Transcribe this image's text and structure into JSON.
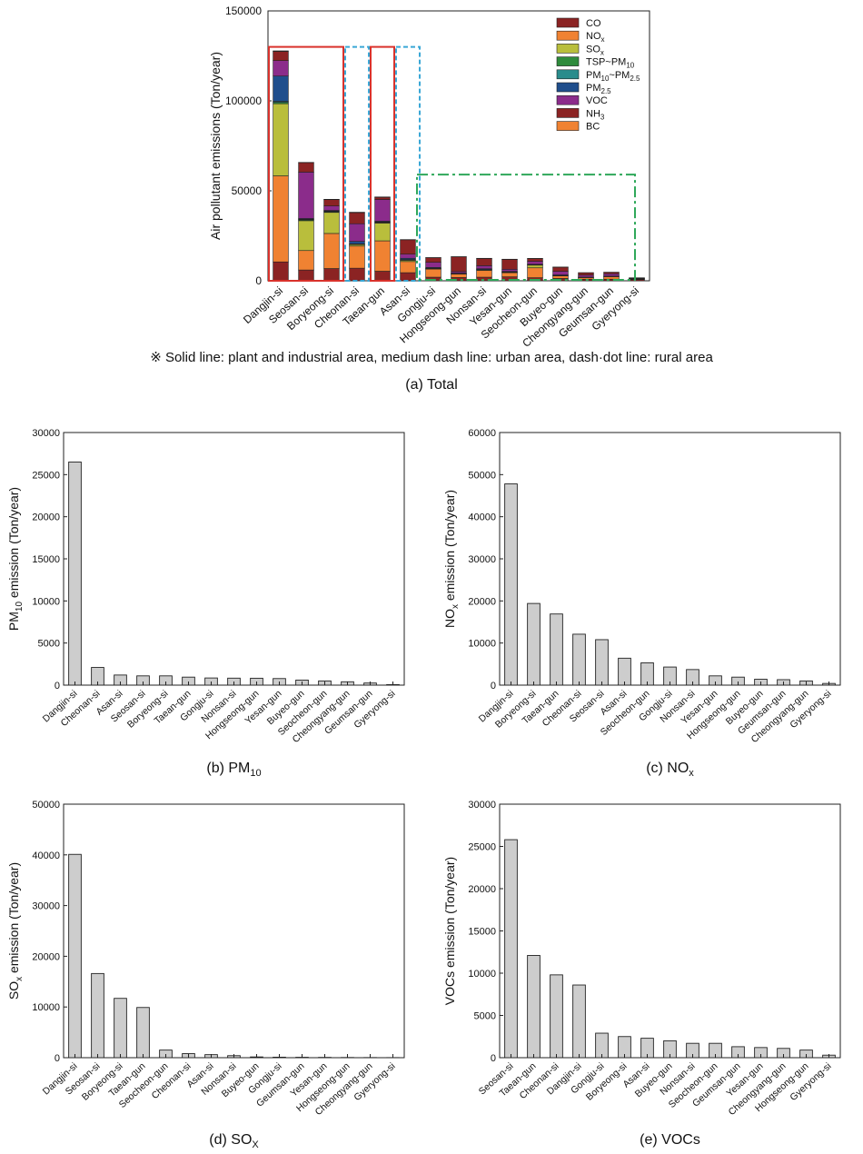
{
  "figure": {
    "note": "※ Solid line: plant and industrial area, medium dash line: urban area, dash·dot line: rural area"
  },
  "chart_data": [
    {
      "id": "a",
      "type": "bar",
      "stacked": true,
      "caption": "(a) Total",
      "ylabel": "Air pollutant emissions (Ton/year)",
      "ylim": [
        0,
        150000
      ],
      "yticks": [
        0,
        50000,
        100000,
        150000
      ],
      "ytick_labels": [
        "0",
        "50000",
        "100000",
        "150000"
      ],
      "categories": [
        "Dangjin-si",
        "Seosan-si",
        "Boryeong-si",
        "Cheonan-si",
        "Taean-gun",
        "Asan-si",
        "Gongju-si",
        "Hongseong-gun",
        "Nonsan-si",
        "Yesan-gun",
        "Seocheon-gun",
        "Buyeo-gun",
        "Cheongyang-gun",
        "Geumsan-gun",
        "Gyeryong-si"
      ],
      "legend": [
        "CO",
        "NO",
        "SO",
        "TSP~PM",
        "PM~PM",
        "PM",
        "VOC",
        "NH",
        "BC"
      ],
      "legend_sub": [
        "",
        "x",
        "x",
        "10",
        "10 2.5",
        "2.5",
        "",
        "3",
        ""
      ],
      "legend_position": "top-right",
      "grid": false,
      "series": [
        {
          "name": "CO",
          "color": "#8B2323",
          "values": [
            10500,
            6000,
            6800,
            7000,
            5300,
            4500,
            2000,
            1800,
            2000,
            2200,
            1700,
            1300,
            900,
            900,
            700
          ]
        },
        {
          "name": "NO",
          "color": "#F08232",
          "values": [
            47800,
            10800,
            19500,
            12300,
            16900,
            6200,
            4500,
            1900,
            3700,
            2300,
            5500,
            1400,
            900,
            1400,
            300
          ]
        },
        {
          "name": "SO",
          "color": "#B9BE3C",
          "values": [
            40100,
            16600,
            11700,
            800,
            9900,
            700,
            200,
            50,
            400,
            100,
            1500,
            200,
            50,
            100,
            20
          ]
        },
        {
          "name": "TSP~PM10",
          "color": "#2E8B3C",
          "values": [
            800,
            500,
            400,
            200,
            300,
            200,
            200,
            100,
            100,
            200,
            150,
            100,
            50,
            50,
            50
          ]
        },
        {
          "name": "PM10~PM2.5",
          "color": "#2A8C8C",
          "values": [
            600,
            300,
            300,
            200,
            300,
            200,
            100,
            50,
            100,
            100,
            100,
            50,
            50,
            50,
            20
          ]
        },
        {
          "name": "PM2.5",
          "color": "#1F4E8C",
          "values": [
            14000,
            400,
            400,
            1400,
            400,
            700,
            400,
            300,
            400,
            300,
            200,
            200,
            100,
            100,
            50
          ]
        },
        {
          "name": "VOC",
          "color": "#8B2C8B",
          "values": [
            8600,
            25800,
            2500,
            9800,
            12100,
            2300,
            2900,
            900,
            1700,
            1200,
            1700,
            2000,
            1100,
            1300,
            300
          ]
        },
        {
          "name": "NH",
          "color": "#8B2323",
          "values": [
            5100,
            5300,
            3500,
            6200,
            1200,
            8000,
            2500,
            8200,
            4000,
            5500,
            1500,
            2300,
            1300,
            800,
            200
          ]
        },
        {
          "name": "BC",
          "color": "#F08232",
          "values": [
            300,
            100,
            200,
            200,
            200,
            100,
            100,
            100,
            100,
            100,
            100,
            100,
            50,
            50,
            10
          ]
        }
      ]
    },
    {
      "id": "b",
      "type": "bar",
      "caption": "(b) PM",
      "caption_sub": "10",
      "ylabel": "PM",
      "ylabel_sub": "10",
      "ylabel_rest": " emission (Ton/year)",
      "ylim": [
        0,
        30000
      ],
      "yticks": [
        0,
        5000,
        10000,
        15000,
        20000,
        25000,
        30000
      ],
      "ytick_labels": [
        "0",
        "5000",
        "10000",
        "15000",
        "20000",
        "25000",
        "30000"
      ],
      "categories": [
        "Dangjin-si",
        "Cheonan-si",
        "Asan-si",
        "Seosan-si",
        "Boryeong-si",
        "Taean-gun",
        "Gongju-si",
        "Nonsan-si",
        "Hongseong-gun",
        "Yesan-gun",
        "Buyeo-gun",
        "Seocheon-gun",
        "Cheongyang-gun",
        "Geumsan-gun",
        "Gyeryong-si"
      ],
      "values": [
        26500,
        2100,
        1200,
        1100,
        1100,
        950,
        850,
        830,
        820,
        780,
        600,
        500,
        400,
        250,
        60
      ]
    },
    {
      "id": "c",
      "type": "bar",
      "caption": "(c) NO",
      "caption_sub": "x",
      "ylabel": "NO",
      "ylabel_sub": "x",
      "ylabel_rest": " emission (Ton/year)",
      "ylim": [
        0,
        60000
      ],
      "yticks": [
        0,
        10000,
        20000,
        30000,
        40000,
        50000,
        60000
      ],
      "ytick_labels": [
        "0",
        "10000",
        "20000",
        "30000",
        "40000",
        "50000",
        "60000"
      ],
      "categories": [
        "Dangjin-si",
        "Boryeong-si",
        "Taean-gun",
        "Cheonan-si",
        "Seosan-si",
        "Asan-si",
        "Seocheon-gun",
        "Gongju-si",
        "Nonsan-si",
        "Yesan-gun",
        "Hongseong-gun",
        "Buyeo-gun",
        "Geumsan-gun",
        "Cheongyang-gun",
        "Gyeryong-si"
      ],
      "values": [
        47800,
        19400,
        16900,
        12100,
        10800,
        6400,
        5300,
        4300,
        3700,
        2200,
        1900,
        1400,
        1300,
        1000,
        400
      ]
    },
    {
      "id": "d",
      "type": "bar",
      "caption": "(d) SO",
      "caption_sub": "X",
      "ylabel": "SO",
      "ylabel_sub": "x",
      "ylabel_rest": " emission (Ton/year)",
      "ylim": [
        0,
        50000
      ],
      "yticks": [
        0,
        10000,
        20000,
        30000,
        40000,
        50000
      ],
      "ytick_labels": [
        "0",
        "10000",
        "20000",
        "30000",
        "40000",
        "50000"
      ],
      "categories": [
        "Dangjin-si",
        "Seosan-si",
        "Boryeong-si",
        "Taean-gun",
        "Seocheon-gun",
        "Cheonan-si",
        "Asan-si",
        "Nonsan-si",
        "Buyeo-gun",
        "Gongju-si",
        "Geumsan-gun",
        "Yesan-gun",
        "Hongseong-gun",
        "Cheongyang-gun",
        "Gyeryong-si"
      ],
      "values": [
        40100,
        16600,
        11700,
        9900,
        1500,
        800,
        600,
        400,
        150,
        100,
        80,
        60,
        40,
        30,
        20
      ]
    },
    {
      "id": "e",
      "type": "bar",
      "caption": "(e) VOCs",
      "ylabel": "VOCs emission (Ton/year)",
      "ylim": [
        0,
        30000
      ],
      "yticks": [
        0,
        5000,
        10000,
        15000,
        20000,
        25000,
        30000
      ],
      "ytick_labels": [
        "0",
        "5000",
        "10000",
        "15000",
        "20000",
        "25000",
        "30000"
      ],
      "categories": [
        "Seosan-si",
        "Taean-gun",
        "Cheonan-si",
        "Dangjin-si",
        "Gongju-si",
        "Boryeong-si",
        "Asan-si",
        "Buyeo-gun",
        "Nonsan-si",
        "Seocheon-gun",
        "Geumsan-gun",
        "Yesan-gun",
        "Cheongyang-gun",
        "Hongseong-gun",
        "Gyeryong-si"
      ],
      "values": [
        25800,
        12100,
        9800,
        8600,
        2900,
        2500,
        2300,
        2000,
        1700,
        1700,
        1300,
        1200,
        1100,
        900,
        300
      ]
    }
  ]
}
